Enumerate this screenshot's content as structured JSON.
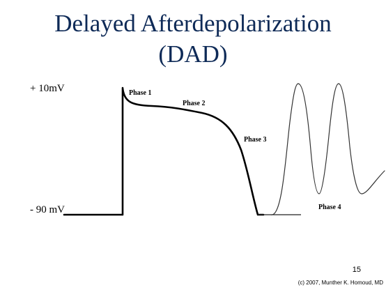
{
  "slide": {
    "title_line1": "Delayed Afterdepolarization",
    "title_line2": "(DAD)",
    "slide_number": "15",
    "copyright": "(c) 2007, Munther K. Homoud, MD"
  },
  "diagram": {
    "y_axis": {
      "top_label": "+ 10mV",
      "bottom_label": "- 90 mV"
    },
    "phases": [
      {
        "label": "Phase 1"
      },
      {
        "label": "Phase 2"
      },
      {
        "label": "Phase 3"
      },
      {
        "label": "Phase 4"
      }
    ],
    "colors": {
      "title": "#0e2a57",
      "action_potential": "#000000",
      "afterdepolarization": "#333333"
    }
  }
}
